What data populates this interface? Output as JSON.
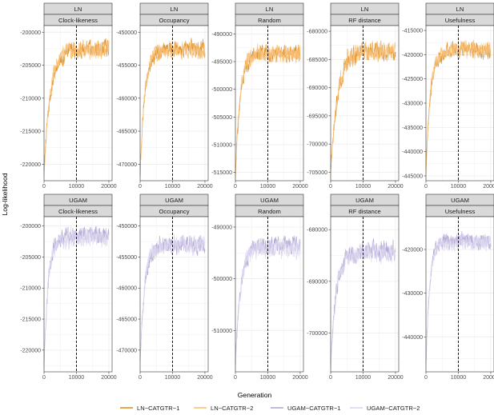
{
  "chart_data": {
    "type": "line",
    "xlabel": "Generation",
    "ylabel": "Log-likelihood",
    "x_ticks": [
      0,
      10000,
      20000
    ],
    "xlim": [
      0,
      21000
    ],
    "burnin_line_x": 10000,
    "legend": {
      "position": "bottom",
      "entries": [
        "LN−CATGTR−1",
        "LN−CATGTR−2",
        "UGAM−CATGTR−1",
        "UGAM−CATGTR−2"
      ]
    },
    "colors": {
      "LN−CATGTR−1": "#de8f23",
      "LN−CATGTR−2": "#f7c07b",
      "UGAM−CATGTR−1": "#b3a8d6",
      "UGAM−CATGTR−2": "#dcd6ee"
    },
    "panels": [
      {
        "model": "LN",
        "metric": "Clock-likeness",
        "ylim": [
          -222500,
          -199000
        ],
        "y_ticks": [
          -200000,
          -205000,
          -210000,
          -215000,
          -220000
        ],
        "y_tick_labels": [
          "-200000",
          "-205000",
          "-210000",
          "-215000",
          "-220000"
        ],
        "series": [
          {
            "name": "LN−CATGTR−1",
            "start": -221000,
            "plateau": -202500,
            "noise": 900,
            "rate": 1.4
          },
          {
            "name": "LN−CATGTR−2",
            "start": -222000,
            "plateau": -202600,
            "noise": 950,
            "rate": 1.2
          }
        ]
      },
      {
        "model": "LN",
        "metric": "Occupancy",
        "ylim": [
          -472500,
          -449000
        ],
        "y_ticks": [
          -450000,
          -455000,
          -460000,
          -465000,
          -470000
        ],
        "y_tick_labels": [
          "-450000",
          "-455000",
          "-460000",
          "-465000",
          "-470000"
        ],
        "series": [
          {
            "name": "LN−CATGTR−1",
            "start": -471500,
            "plateau": -452500,
            "noise": 900,
            "rate": 1.0
          },
          {
            "name": "LN−CATGTR−2",
            "start": -472000,
            "plateau": -452700,
            "noise": 950,
            "rate": 0.9
          }
        ]
      },
      {
        "model": "LN",
        "metric": "Random",
        "ylim": [
          -516500,
          -488500
        ],
        "y_ticks": [
          -490000,
          -495000,
          -500000,
          -505000,
          -510000,
          -515000
        ],
        "y_tick_labels": [
          "-490000",
          "-495000",
          "-500000",
          "-505000",
          "-510000",
          "-515000"
        ],
        "series": [
          {
            "name": "LN−CATGTR−1",
            "start": -515500,
            "plateau": -493500,
            "noise": 1100,
            "rate": 1.0
          },
          {
            "name": "LN−CATGTR−2",
            "start": -516000,
            "plateau": -493500,
            "noise": 1100,
            "rate": 0.9
          }
        ]
      },
      {
        "model": "LN",
        "metric": "RF distance",
        "ylim": [
          -706500,
          -679000
        ],
        "y_ticks": [
          -680000,
          -685000,
          -690000,
          -695000,
          -700000,
          -705000
        ],
        "y_tick_labels": [
          "-680000",
          "-685000",
          "-690000",
          "-695000",
          "-700000",
          "-705000"
        ],
        "series": [
          {
            "name": "LN−CATGTR−1",
            "start": -705000,
            "plateau": -683500,
            "noise": 1200,
            "rate": 1.5
          },
          {
            "name": "LN−CATGTR−2",
            "start": -705500,
            "plateau": -683500,
            "noise": 1250,
            "rate": 1.4
          }
        ]
      },
      {
        "model": "LN",
        "metric": "Usefulness",
        "ylim": [
          -446000,
          -414000
        ],
        "y_ticks": [
          -415000,
          -420000,
          -425000,
          -430000,
          -435000,
          -440000,
          -445000
        ],
        "y_tick_labels": [
          "-415000",
          "-420000",
          "-425000",
          "-430000",
          "-435000",
          "-440000",
          "-445000"
        ],
        "series": [
          {
            "name": "LN−CATGTR−1",
            "start": -443500,
            "plateau": -419000,
            "noise": 1200,
            "rate": 1.0
          },
          {
            "name": "LN−CATGTR−2",
            "start": -444500,
            "plateau": -419000,
            "noise": 1250,
            "rate": 0.9
          }
        ]
      },
      {
        "model": "UGAM",
        "metric": "Clock-likeness",
        "ylim": [
          -223500,
          -198500
        ],
        "y_ticks": [
          -200000,
          -205000,
          -210000,
          -215000,
          -220000
        ],
        "y_tick_labels": [
          "-200000",
          "-205000",
          "-210000",
          "-215000",
          "-220000"
        ],
        "series": [
          {
            "name": "UGAM−CATGTR−1",
            "start": -222500,
            "plateau": -201500,
            "noise": 1000,
            "rate": 0.9
          },
          {
            "name": "UGAM−CATGTR−2",
            "start": -223000,
            "plateau": -202000,
            "noise": 1100,
            "rate": 0.8
          }
        ]
      },
      {
        "model": "UGAM",
        "metric": "Occupancy",
        "ylim": [
          -473500,
          -448500
        ],
        "y_ticks": [
          -450000,
          -455000,
          -460000,
          -465000,
          -470000
        ],
        "y_tick_labels": [
          "-450000",
          "-455000",
          "-460000",
          "-465000",
          "-470000"
        ],
        "series": [
          {
            "name": "UGAM−CATGTR−1",
            "start": -471500,
            "plateau": -453000,
            "noise": 1000,
            "rate": 1.0
          },
          {
            "name": "UGAM−CATGTR−2",
            "start": -472500,
            "plateau": -453000,
            "noise": 1100,
            "rate": 0.9
          }
        ]
      },
      {
        "model": "UGAM",
        "metric": "Random",
        "ylim": [
          -518000,
          -488000
        ],
        "y_ticks": [
          -490000,
          -500000,
          -510000
        ],
        "y_tick_labels": [
          "-490000",
          "-500000",
          "-510000"
        ],
        "series": [
          {
            "name": "UGAM−CATGTR−1",
            "start": -516500,
            "plateau": -493500,
            "noise": 1300,
            "rate": 1.1
          },
          {
            "name": "UGAM−CATGTR−2",
            "start": -517500,
            "plateau": -494000,
            "noise": 1400,
            "rate": 1.0
          }
        ]
      },
      {
        "model": "UGAM",
        "metric": "RF distance",
        "ylim": [
          -707500,
          -677500
        ],
        "y_ticks": [
          -680000,
          -690000,
          -700000
        ],
        "y_tick_labels": [
          "-680000",
          "-690000",
          "-700000"
        ],
        "series": [
          {
            "name": "UGAM−CATGTR−1",
            "start": -706000,
            "plateau": -684000,
            "noise": 1300,
            "rate": 1.2
          },
          {
            "name": "UGAM−CATGTR−2",
            "start": -707000,
            "plateau": -684500,
            "noise": 1400,
            "rate": 1.1
          }
        ]
      },
      {
        "model": "UGAM",
        "metric": "Usefulness",
        "ylim": [
          -448000,
          -412500
        ],
        "y_ticks": [
          -420000,
          -430000,
          -440000
        ],
        "y_tick_labels": [
          "-420000",
          "-430000",
          "-440000"
        ],
        "series": [
          {
            "name": "UGAM−CATGTR−1",
            "start": -446000,
            "plateau": -418000,
            "noise": 1200,
            "rate": 0.8
          },
          {
            "name": "UGAM−CATGTR−2",
            "start": -447000,
            "plateau": -418500,
            "noise": 1300,
            "rate": 0.7
          }
        ]
      }
    ]
  }
}
